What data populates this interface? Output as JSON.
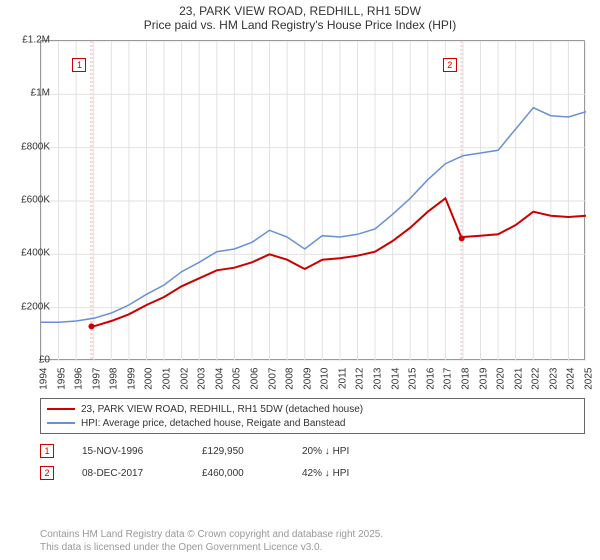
{
  "title": {
    "main": "23, PARK VIEW ROAD, REDHILL, RH1 5DW",
    "sub": "Price paid vs. HM Land Registry's House Price Index (HPI)"
  },
  "chart": {
    "type": "line",
    "background_color": "#ffffff",
    "plot_border_color": "#999999",
    "grid_color": "#e2e2e2",
    "marker_stripe_color": "#f6d9d9",
    "ylim": [
      0,
      1200000
    ],
    "ytick_step": 200000,
    "ytick_labels": [
      "£0",
      "£200K",
      "£400K",
      "£600K",
      "£800K",
      "£1M",
      "£1.2M"
    ],
    "xlim": [
      1994,
      2025
    ],
    "xtick_step": 1,
    "xtick_labels": [
      "1994",
      "1995",
      "1996",
      "1997",
      "1998",
      "1999",
      "2000",
      "2001",
      "2002",
      "2003",
      "2004",
      "2005",
      "2006",
      "2007",
      "2008",
      "2009",
      "2010",
      "2011",
      "2012",
      "2013",
      "2014",
      "2015",
      "2016",
      "2017",
      "2018",
      "2019",
      "2020",
      "2021",
      "2022",
      "2023",
      "2024",
      "2025"
    ],
    "series": [
      {
        "name": "property",
        "label": "23, PARK VIEW ROAD, REDHILL, RH1 5DW (detached house)",
        "color": "#cc0000",
        "line_width": 2,
        "data": [
          [
            1996.87,
            129950
          ],
          [
            1997,
            130000
          ],
          [
            1998,
            150000
          ],
          [
            1999,
            175000
          ],
          [
            2000,
            210000
          ],
          [
            2001,
            240000
          ],
          [
            2002,
            280000
          ],
          [
            2003,
            310000
          ],
          [
            2004,
            340000
          ],
          [
            2005,
            350000
          ],
          [
            2006,
            370000
          ],
          [
            2007,
            400000
          ],
          [
            2008,
            380000
          ],
          [
            2009,
            345000
          ],
          [
            2010,
            380000
          ],
          [
            2011,
            385000
          ],
          [
            2012,
            395000
          ],
          [
            2013,
            410000
          ],
          [
            2014,
            450000
          ],
          [
            2015,
            500000
          ],
          [
            2016,
            560000
          ],
          [
            2017,
            610000
          ],
          [
            2017.93,
            460000
          ],
          [
            2018,
            465000
          ],
          [
            2019,
            470000
          ],
          [
            2020,
            475000
          ],
          [
            2021,
            510000
          ],
          [
            2022,
            560000
          ],
          [
            2023,
            545000
          ],
          [
            2024,
            540000
          ],
          [
            2025,
            545000
          ]
        ]
      },
      {
        "name": "hpi",
        "label": "HPI: Average price, detached house, Reigate and Banstead",
        "color": "#6a8fd4",
        "line_width": 1.5,
        "data": [
          [
            1994,
            145000
          ],
          [
            1995,
            145000
          ],
          [
            1996,
            150000
          ],
          [
            1997,
            160000
          ],
          [
            1998,
            180000
          ],
          [
            1999,
            210000
          ],
          [
            2000,
            250000
          ],
          [
            2001,
            285000
          ],
          [
            2002,
            335000
          ],
          [
            2003,
            370000
          ],
          [
            2004,
            410000
          ],
          [
            2005,
            420000
          ],
          [
            2006,
            445000
          ],
          [
            2007,
            490000
          ],
          [
            2008,
            465000
          ],
          [
            2009,
            420000
          ],
          [
            2010,
            470000
          ],
          [
            2011,
            465000
          ],
          [
            2012,
            475000
          ],
          [
            2013,
            495000
          ],
          [
            2014,
            550000
          ],
          [
            2015,
            610000
          ],
          [
            2016,
            680000
          ],
          [
            2017,
            740000
          ],
          [
            2018,
            770000
          ],
          [
            2019,
            780000
          ],
          [
            2020,
            790000
          ],
          [
            2021,
            870000
          ],
          [
            2022,
            950000
          ],
          [
            2023,
            920000
          ],
          [
            2024,
            915000
          ],
          [
            2025,
            935000
          ]
        ]
      }
    ],
    "markers": [
      {
        "id": "1",
        "x": 1996.87,
        "y": 129950,
        "color": "#cc0000"
      },
      {
        "id": "2",
        "x": 2017.93,
        "y": 460000,
        "color": "#cc0000"
      }
    ]
  },
  "legend": {
    "items": [
      {
        "color": "#cc0000",
        "width": 2,
        "label": "23, PARK VIEW ROAD, REDHILL, RH1 5DW (detached house)"
      },
      {
        "color": "#6a8fd4",
        "width": 1.5,
        "label": "HPI: Average price, detached house, Reigate and Banstead"
      }
    ]
  },
  "transactions": [
    {
      "id": "1",
      "date": "15-NOV-1996",
      "price": "£129,950",
      "pct": "20% ↓ HPI",
      "color": "#cc0000"
    },
    {
      "id": "2",
      "date": "08-DEC-2017",
      "price": "£460,000",
      "pct": "42% ↓ HPI",
      "color": "#cc0000"
    }
  ],
  "footer": {
    "line1": "Contains HM Land Registry data © Crown copyright and database right 2025.",
    "line2": "This data is licensed under the Open Government Licence v3.0."
  }
}
